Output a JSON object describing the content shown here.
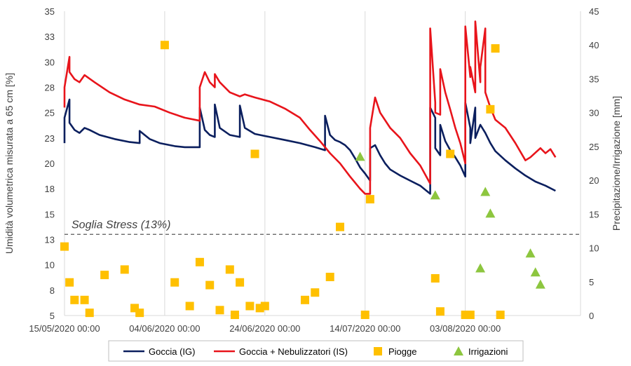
{
  "chart_data": {
    "type": "line",
    "title": "",
    "ylabel": "Umidità volumetrica misurata a 65 cm [%]",
    "y2label": "Precipitazione/Irrigazione [mm]",
    "xlabel": "",
    "x_start": "2020-05-15",
    "x_end": "2020-08-26",
    "ylim": [
      5,
      35
    ],
    "y2lim": [
      0,
      45
    ],
    "yticks": [
      "5",
      "8",
      "10",
      "13",
      "15",
      "18",
      "20",
      "23",
      "25",
      "28",
      "30",
      "33",
      "35"
    ],
    "y2ticks": [
      "0",
      "5",
      "10",
      "15",
      "20",
      "25",
      "30",
      "35",
      "40",
      "45"
    ],
    "xtick_labels": [
      {
        "date": "2020-05-15",
        "label": "15/05/2020 00:00"
      },
      {
        "date": "2020-06-04",
        "label": "04/06/2020 00:00"
      },
      {
        "date": "2020-06-24",
        "label": "24/06/2020 00:00"
      },
      {
        "date": "2020-07-14",
        "label": "14/07/2020 00:00"
      },
      {
        "date": "2020-08-03",
        "label": "03/08/2020 00:00"
      }
    ],
    "grid": "vertical",
    "legend_position": "bottom",
    "threshold": {
      "label": "Soglia Stress (13%)",
      "value": 13
    },
    "colors": {
      "ig": "#0b1f5e",
      "is": "#e8141b",
      "rain": "#ffc000",
      "irr": "#8dc63f"
    },
    "series": [
      {
        "name": "Goccia (IG)",
        "axis": "left",
        "points": [
          [
            "2020-05-15",
            22.0
          ],
          [
            "2020-05-15",
            24.5
          ],
          [
            "2020-05-16",
            26.3
          ],
          [
            "2020-05-16",
            24.0
          ],
          [
            "2020-05-17",
            23.3
          ],
          [
            "2020-05-18",
            23.0
          ],
          [
            "2020-05-19",
            23.5
          ],
          [
            "2020-05-20",
            23.3
          ],
          [
            "2020-05-22",
            22.8
          ],
          [
            "2020-05-25",
            22.4
          ],
          [
            "2020-05-28",
            22.1
          ],
          [
            "2020-05-30",
            22.0
          ],
          [
            "2020-05-30",
            23.2
          ],
          [
            "2020-05-31",
            22.8
          ],
          [
            "2020-06-01",
            22.4
          ],
          [
            "2020-06-03",
            22.0
          ],
          [
            "2020-06-06",
            21.7
          ],
          [
            "2020-06-08",
            21.6
          ],
          [
            "2020-06-11",
            21.6
          ],
          [
            "2020-06-11",
            25.5
          ],
          [
            "2020-06-12",
            23.3
          ],
          [
            "2020-06-13",
            22.8
          ],
          [
            "2020-06-14",
            22.6
          ],
          [
            "2020-06-14",
            25.8
          ],
          [
            "2020-06-15",
            23.5
          ],
          [
            "2020-06-17",
            22.8
          ],
          [
            "2020-06-19",
            22.6
          ],
          [
            "2020-06-19",
            25.7
          ],
          [
            "2020-06-20",
            23.5
          ],
          [
            "2020-06-22",
            22.9
          ],
          [
            "2020-06-25",
            22.6
          ],
          [
            "2020-06-28",
            22.3
          ],
          [
            "2020-07-01",
            22.0
          ],
          [
            "2020-07-04",
            21.6
          ],
          [
            "2020-07-06",
            21.3
          ],
          [
            "2020-07-06",
            24.7
          ],
          [
            "2020-07-07",
            22.8
          ],
          [
            "2020-07-08",
            22.3
          ],
          [
            "2020-07-09",
            22.1
          ],
          [
            "2020-07-10",
            21.8
          ],
          [
            "2020-07-11",
            21.3
          ],
          [
            "2020-07-12",
            20.5
          ],
          [
            "2020-07-13",
            19.6
          ],
          [
            "2020-07-14",
            19.0
          ],
          [
            "2020-07-15",
            18.3
          ],
          [
            "2020-07-15",
            21.5
          ],
          [
            "2020-07-16",
            21.8
          ],
          [
            "2020-07-17",
            20.8
          ],
          [
            "2020-07-18",
            20.0
          ],
          [
            "2020-07-19",
            19.4
          ],
          [
            "2020-07-21",
            18.8
          ],
          [
            "2020-07-23",
            18.3
          ],
          [
            "2020-07-25",
            17.8
          ],
          [
            "2020-07-26",
            17.4
          ],
          [
            "2020-07-27",
            17.0
          ],
          [
            "2020-07-27",
            25.5
          ],
          [
            "2020-07-28",
            24.5
          ],
          [
            "2020-07-28",
            21.5
          ],
          [
            "2020-07-29",
            20.8
          ],
          [
            "2020-07-29",
            23.8
          ],
          [
            "2020-07-30",
            22.2
          ],
          [
            "2020-07-31",
            21.3
          ],
          [
            "2020-08-01",
            20.6
          ],
          [
            "2020-08-02",
            19.8
          ],
          [
            "2020-08-03",
            18.7
          ],
          [
            "2020-08-03",
            26.0
          ],
          [
            "2020-08-04",
            23.5
          ],
          [
            "2020-08-04",
            22.0
          ],
          [
            "2020-08-05",
            25.5
          ],
          [
            "2020-08-05",
            22.5
          ],
          [
            "2020-08-06",
            23.8
          ],
          [
            "2020-08-07",
            23.0
          ],
          [
            "2020-08-08",
            22.0
          ],
          [
            "2020-08-09",
            21.2
          ],
          [
            "2020-08-11",
            20.3
          ],
          [
            "2020-08-13",
            19.5
          ],
          [
            "2020-08-15",
            18.8
          ],
          [
            "2020-08-17",
            18.2
          ],
          [
            "2020-08-19",
            17.8
          ],
          [
            "2020-08-21",
            17.3
          ]
        ]
      },
      {
        "name": "Goccia + Nebulizzatori (IS)",
        "axis": "left",
        "points": [
          [
            "2020-05-15",
            25.5
          ],
          [
            "2020-05-15",
            27.5
          ],
          [
            "2020-05-16",
            30.5
          ],
          [
            "2020-05-16",
            29.0
          ],
          [
            "2020-05-17",
            28.3
          ],
          [
            "2020-05-18",
            28.0
          ],
          [
            "2020-05-19",
            28.7
          ],
          [
            "2020-05-21",
            28.0
          ],
          [
            "2020-05-24",
            27.0
          ],
          [
            "2020-05-27",
            26.3
          ],
          [
            "2020-05-30",
            25.8
          ],
          [
            "2020-06-02",
            25.6
          ],
          [
            "2020-06-05",
            25.0
          ],
          [
            "2020-06-08",
            24.5
          ],
          [
            "2020-06-11",
            24.2
          ],
          [
            "2020-06-11",
            27.5
          ],
          [
            "2020-06-12",
            29.0
          ],
          [
            "2020-06-13",
            28.0
          ],
          [
            "2020-06-14",
            27.5
          ],
          [
            "2020-06-14",
            28.8
          ],
          [
            "2020-06-15",
            28.0
          ],
          [
            "2020-06-17",
            27.0
          ],
          [
            "2020-06-19",
            26.6
          ],
          [
            "2020-06-20",
            26.8
          ],
          [
            "2020-06-22",
            26.5
          ],
          [
            "2020-06-25",
            26.1
          ],
          [
            "2020-06-28",
            25.4
          ],
          [
            "2020-07-01",
            24.5
          ],
          [
            "2020-07-03",
            23.3
          ],
          [
            "2020-07-05",
            22.2
          ],
          [
            "2020-07-07",
            21.0
          ],
          [
            "2020-07-09",
            20.0
          ],
          [
            "2020-07-11",
            18.7
          ],
          [
            "2020-07-13",
            17.5
          ],
          [
            "2020-07-14",
            17.0
          ],
          [
            "2020-07-15",
            17.0
          ],
          [
            "2020-07-15",
            23.5
          ],
          [
            "2020-07-16",
            26.5
          ],
          [
            "2020-07-17",
            25.0
          ],
          [
            "2020-07-19",
            23.5
          ],
          [
            "2020-07-21",
            22.5
          ],
          [
            "2020-07-23",
            21.0
          ],
          [
            "2020-07-25",
            19.8
          ],
          [
            "2020-07-27",
            18.0
          ],
          [
            "2020-07-27",
            33.3
          ],
          [
            "2020-07-28",
            26.0
          ],
          [
            "2020-07-28",
            25.0
          ],
          [
            "2020-07-29",
            24.8
          ],
          [
            "2020-07-29",
            29.3
          ],
          [
            "2020-07-30",
            27.0
          ],
          [
            "2020-07-31",
            25.3
          ],
          [
            "2020-08-01",
            23.5
          ],
          [
            "2020-08-02",
            22.0
          ],
          [
            "2020-08-03",
            20.0
          ],
          [
            "2020-08-03",
            33.5
          ],
          [
            "2020-08-04",
            28.5
          ],
          [
            "2020-08-04",
            29.5
          ],
          [
            "2020-08-05",
            27.0
          ],
          [
            "2020-08-05",
            34.0
          ],
          [
            "2020-08-06",
            28.0
          ],
          [
            "2020-08-06",
            29.5
          ],
          [
            "2020-08-07",
            33.3
          ],
          [
            "2020-08-07",
            27.0
          ],
          [
            "2020-08-08",
            25.5
          ],
          [
            "2020-08-09",
            24.3
          ],
          [
            "2020-08-11",
            23.5
          ],
          [
            "2020-08-13",
            22.0
          ],
          [
            "2020-08-15",
            20.3
          ],
          [
            "2020-08-16",
            20.6
          ],
          [
            "2020-08-18",
            21.5
          ],
          [
            "2020-08-19",
            21.0
          ],
          [
            "2020-08-20",
            21.4
          ],
          [
            "2020-08-21",
            20.6
          ]
        ]
      },
      {
        "name": "Piogge",
        "axis": "right",
        "marker": "square",
        "points": [
          [
            "2020-05-15",
            10.2
          ],
          [
            "2020-05-16",
            4.9
          ],
          [
            "2020-05-17",
            2.3
          ],
          [
            "2020-05-19",
            2.3
          ],
          [
            "2020-05-20",
            0.4
          ],
          [
            "2020-05-23",
            6.0
          ],
          [
            "2020-05-27",
            6.8
          ],
          [
            "2020-05-29",
            1.1
          ],
          [
            "2020-05-30",
            0.4
          ],
          [
            "2020-06-04",
            40.0
          ],
          [
            "2020-06-06",
            4.9
          ],
          [
            "2020-06-09",
            1.4
          ],
          [
            "2020-06-11",
            7.9
          ],
          [
            "2020-06-13",
            4.5
          ],
          [
            "2020-06-15",
            0.8
          ],
          [
            "2020-06-17",
            6.8
          ],
          [
            "2020-06-18",
            0.1
          ],
          [
            "2020-06-19",
            4.9
          ],
          [
            "2020-06-21",
            1.4
          ],
          [
            "2020-06-22",
            23.9
          ],
          [
            "2020-06-23",
            1.1
          ],
          [
            "2020-06-24",
            1.4
          ],
          [
            "2020-07-02",
            2.3
          ],
          [
            "2020-07-04",
            3.4
          ],
          [
            "2020-07-07",
            5.7
          ],
          [
            "2020-07-09",
            13.1
          ],
          [
            "2020-07-14",
            0.1
          ],
          [
            "2020-07-15",
            17.2
          ],
          [
            "2020-07-28",
            5.5
          ],
          [
            "2020-07-29",
            0.6
          ],
          [
            "2020-07-31",
            23.9
          ],
          [
            "2020-08-03",
            0.1
          ],
          [
            "2020-08-04",
            0.1
          ],
          [
            "2020-08-08",
            30.5
          ],
          [
            "2020-08-09",
            39.5
          ],
          [
            "2020-08-10",
            0.1
          ]
        ]
      },
      {
        "name": "Irrigazioni",
        "axis": "right",
        "marker": "triangle",
        "points": [
          [
            "2020-07-13",
            23.5
          ],
          [
            "2020-07-28",
            17.8
          ],
          [
            "2020-08-06",
            7.0
          ],
          [
            "2020-08-07",
            18.3
          ],
          [
            "2020-08-08",
            15.1
          ],
          [
            "2020-08-16",
            9.2
          ],
          [
            "2020-08-17",
            6.4
          ],
          [
            "2020-08-18",
            4.6
          ]
        ]
      }
    ]
  }
}
